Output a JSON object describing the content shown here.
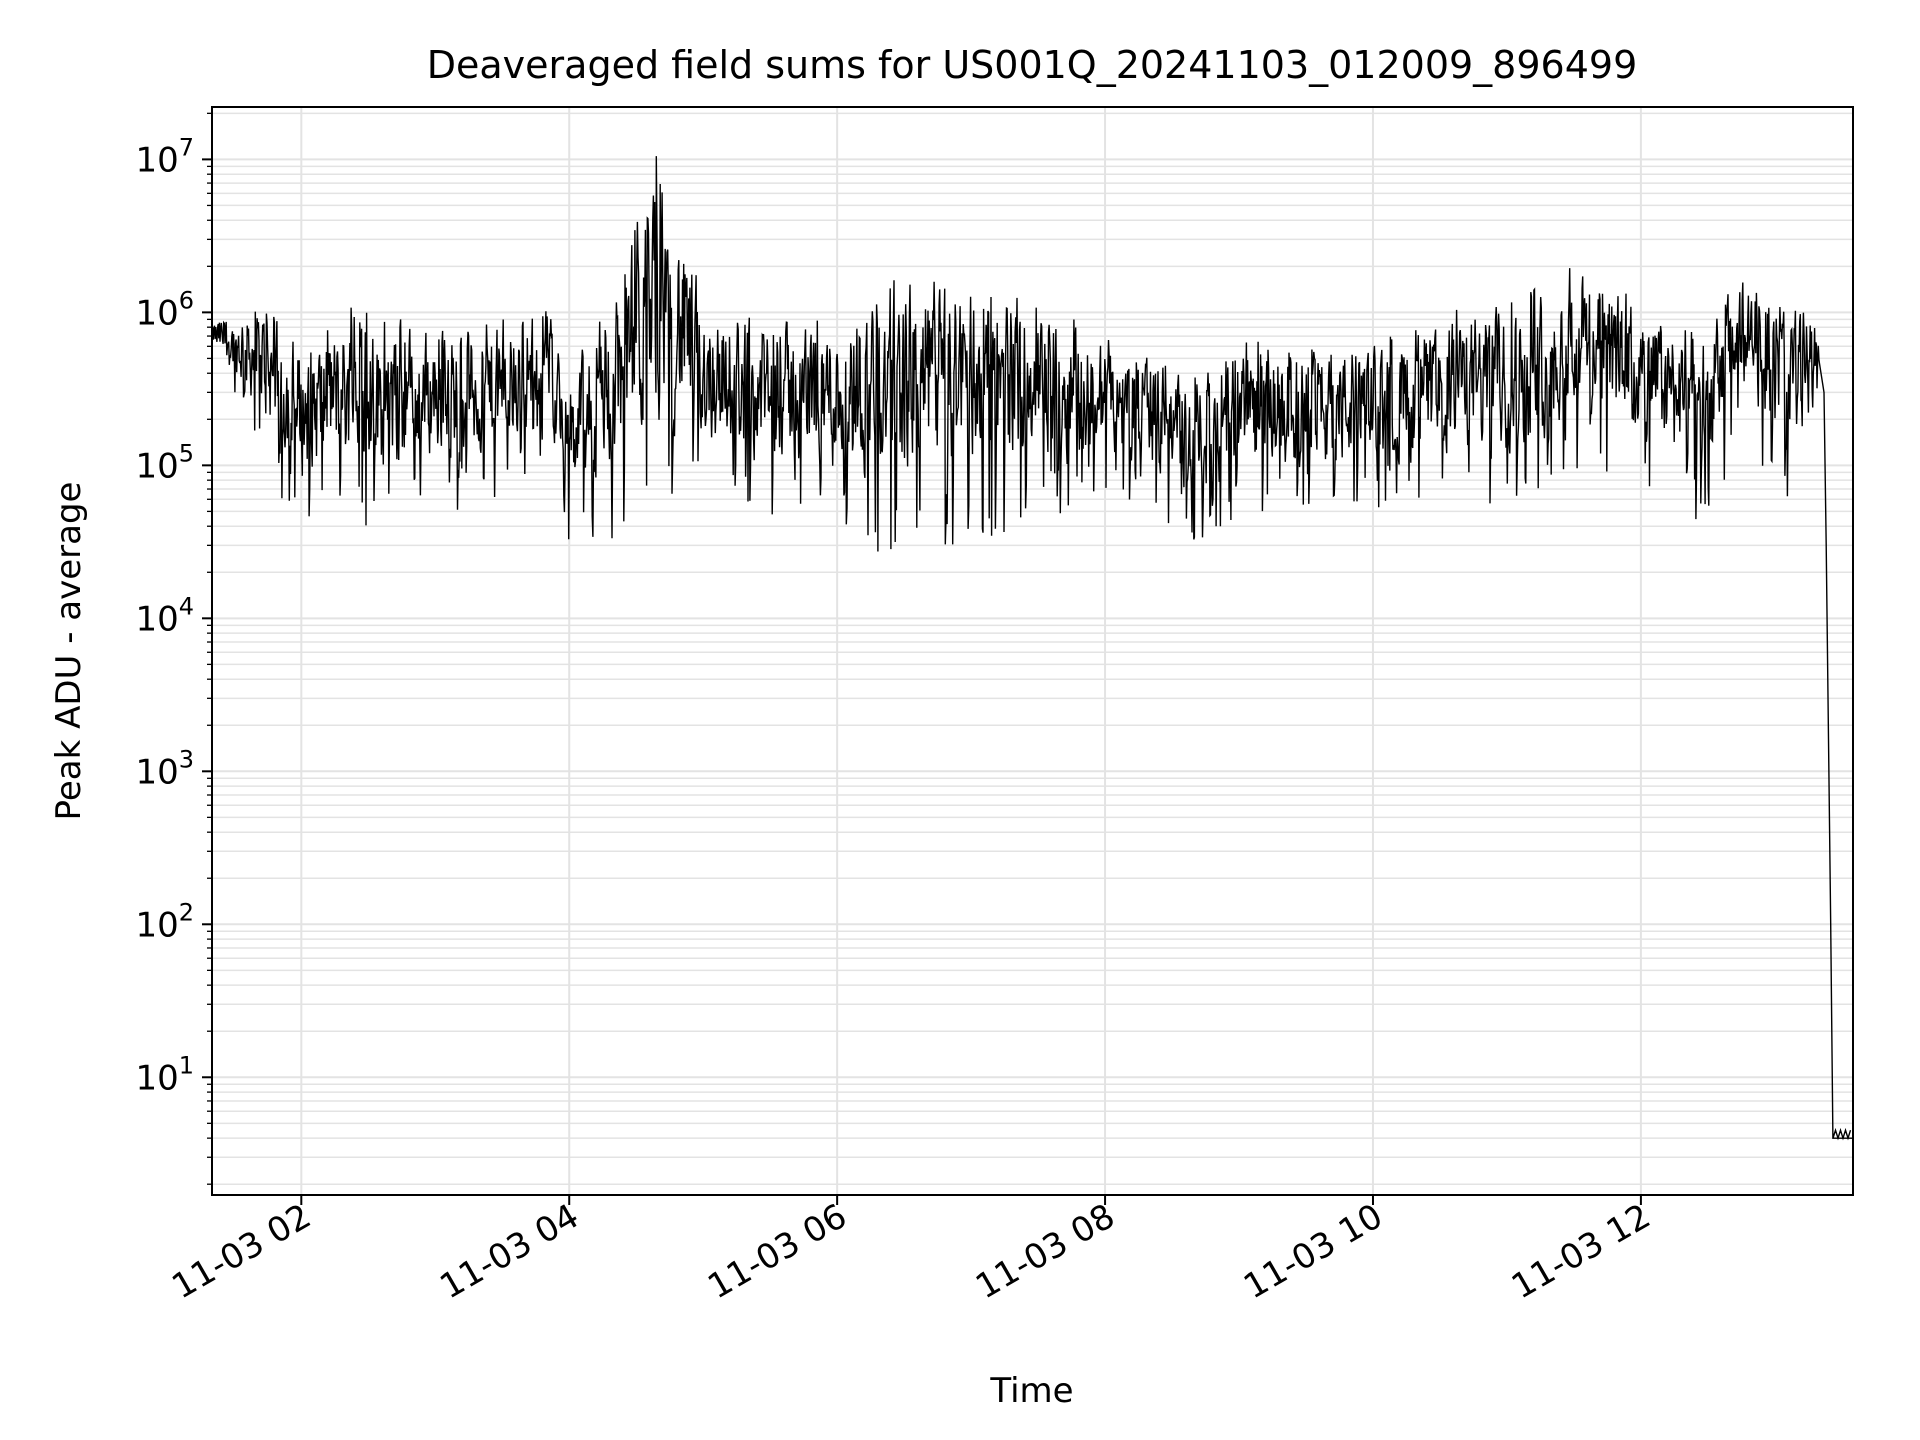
{
  "chart_data": {
    "type": "line",
    "title": "Deaveraged field sums for US001Q_20241103_012009_896499",
    "xlabel": "Time",
    "ylabel": "Peak ADU - average",
    "x_scale": "time",
    "y_scale": "log",
    "xlim": [
      "2024-11-03 01:20",
      "2024-11-03 13:35"
    ],
    "ylim": [
      1.7,
      22000000
    ],
    "grid": {
      "major": true,
      "minor_y": true,
      "color": "#e3e3e3"
    },
    "x_ticks": [
      {
        "t": "2024-11-03 02:00",
        "label": "11-03 02"
      },
      {
        "t": "2024-11-03 04:00",
        "label": "11-03 04"
      },
      {
        "t": "2024-11-03 06:00",
        "label": "11-03 06"
      },
      {
        "t": "2024-11-03 08:00",
        "label": "11-03 08"
      },
      {
        "t": "2024-11-03 10:00",
        "label": "11-03 10"
      },
      {
        "t": "2024-11-03 12:00",
        "label": "11-03 12"
      }
    ],
    "y_ticks": [
      {
        "value": 10,
        "base": "10",
        "exp": "1"
      },
      {
        "value": 100,
        "base": "10",
        "exp": "2"
      },
      {
        "value": 1000,
        "base": "10",
        "exp": "3"
      },
      {
        "value": 10000,
        "base": "10",
        "exp": "4"
      },
      {
        "value": 100000,
        "base": "10",
        "exp": "5"
      },
      {
        "value": 1000000,
        "base": "10",
        "exp": "6"
      },
      {
        "value": 10000000,
        "base": "10",
        "exp": "7"
      }
    ],
    "line_color": "#000000",
    "series": [
      {
        "envelope_approx": [
          {
            "t": "2024-11-03 01:20",
            "high": 900000,
            "low": 500000
          },
          {
            "t": "2024-11-03 01:40",
            "high": 1300000,
            "low": 120000
          },
          {
            "t": "2024-11-03 02:00",
            "high": 700000,
            "low": 35000
          },
          {
            "t": "2024-11-03 02:20",
            "high": 1100000,
            "low": 40000
          },
          {
            "t": "2024-11-03 02:40",
            "high": 900000,
            "low": 35000
          },
          {
            "t": "2024-11-03 03:00",
            "high": 900000,
            "low": 50000
          },
          {
            "t": "2024-11-03 03:30",
            "high": 900000,
            "low": 50000
          },
          {
            "t": "2024-11-03 03:50",
            "high": 1300000,
            "low": 120000
          },
          {
            "t": "2024-11-03 04:00",
            "high": 400000,
            "low": 30000
          },
          {
            "t": "2024-11-03 04:20",
            "high": 1400000,
            "low": 30000
          },
          {
            "t": "2024-11-03 04:40",
            "high": 10500000,
            "low": 50000
          },
          {
            "t": "2024-11-03 05:00",
            "high": 1400000,
            "low": 60000
          },
          {
            "t": "2024-11-03 05:30",
            "high": 900000,
            "low": 45000
          },
          {
            "t": "2024-11-03 06:00",
            "high": 1100000,
            "low": 35000
          },
          {
            "t": "2024-11-03 06:20",
            "high": 1900000,
            "low": 25000
          },
          {
            "t": "2024-11-03 07:00",
            "high": 1900000,
            "low": 30000
          },
          {
            "t": "2024-11-03 07:30",
            "high": 1200000,
            "low": 45000
          },
          {
            "t": "2024-11-03 08:00",
            "high": 700000,
            "low": 55000
          },
          {
            "t": "2024-11-03 08:30",
            "high": 500000,
            "low": 40000
          },
          {
            "t": "2024-11-03 08:45",
            "high": 400000,
            "low": 22000
          },
          {
            "t": "2024-11-03 09:00",
            "high": 700000,
            "low": 40000
          },
          {
            "t": "2024-11-03 09:30",
            "high": 600000,
            "low": 45000
          },
          {
            "t": "2024-11-03 10:00",
            "high": 700000,
            "low": 50000
          },
          {
            "t": "2024-11-03 10:30",
            "high": 1000000,
            "low": 60000
          },
          {
            "t": "2024-11-03 11:00",
            "high": 1200000,
            "low": 50000
          },
          {
            "t": "2024-11-03 11:35",
            "high": 2300000,
            "low": 100000
          },
          {
            "t": "2024-11-03 12:00",
            "high": 1100000,
            "low": 60000
          },
          {
            "t": "2024-11-03 12:30",
            "high": 900000,
            "low": 40000
          },
          {
            "t": "2024-11-03 12:45",
            "high": 1900000,
            "low": 150000
          },
          {
            "t": "2024-11-03 13:10",
            "high": 1200000,
            "low": 50000
          },
          {
            "t": "2024-11-03 13:20",
            "high": 1100000,
            "low": 200000
          }
        ],
        "tail_approx": [
          {
            "t": "2024-11-03 13:22",
            "value": 300000
          },
          {
            "t": "2024-11-03 13:23",
            "value": 30000
          },
          {
            "t": "2024-11-03 13:25",
            "value": 100
          },
          {
            "t": "2024-11-03 13:26",
            "value": 4
          },
          {
            "t": "2024-11-03 13:35",
            "value": 4
          }
        ]
      }
    ]
  }
}
